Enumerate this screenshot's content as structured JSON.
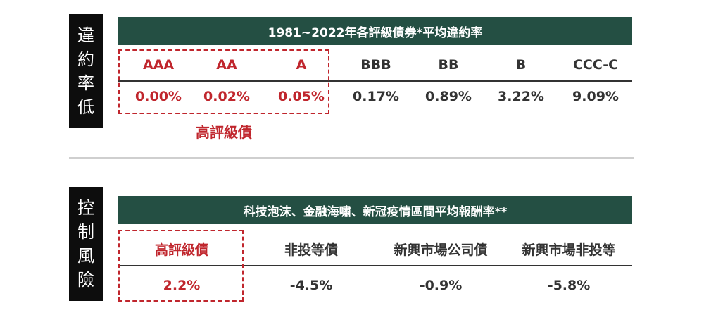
{
  "section1": {
    "side_label": [
      "違",
      "約",
      "率",
      "低"
    ],
    "title": "1981~2022年各評級債券*平均違約率",
    "columns": [
      {
        "rating": "AAA",
        "value": "0.00%",
        "highlight": true
      },
      {
        "rating": "AA",
        "value": "0.02%",
        "highlight": true
      },
      {
        "rating": "A",
        "value": "0.05%",
        "highlight": true
      },
      {
        "rating": "BBB",
        "value": "0.17%",
        "highlight": false
      },
      {
        "rating": "BB",
        "value": "0.89%",
        "highlight": false
      },
      {
        "rating": "B",
        "value": "3.22%",
        "highlight": false
      },
      {
        "rating": "CCC-C",
        "value": "9.09%",
        "highlight": false
      }
    ],
    "group_label": "高評級債"
  },
  "section2": {
    "side_label": [
      "控",
      "制",
      "風",
      "險"
    ],
    "title": "科技泡沫、金融海嘯、新冠疫情區間平均報酬率**",
    "columns": [
      {
        "label": "高評級債",
        "value": "2.2%",
        "highlight": true
      },
      {
        "label": "非投等債",
        "value": "-4.5%",
        "highlight": false
      },
      {
        "label": "新興市場公司債",
        "value": "-0.9%",
        "highlight": false
      },
      {
        "label": "新興市場非投等",
        "value": "-5.8%",
        "highlight": false
      }
    ]
  },
  "colors": {
    "banner": "#244f43",
    "accent_red": "#c0262d",
    "side_label_bg": "#0d0d0d"
  }
}
